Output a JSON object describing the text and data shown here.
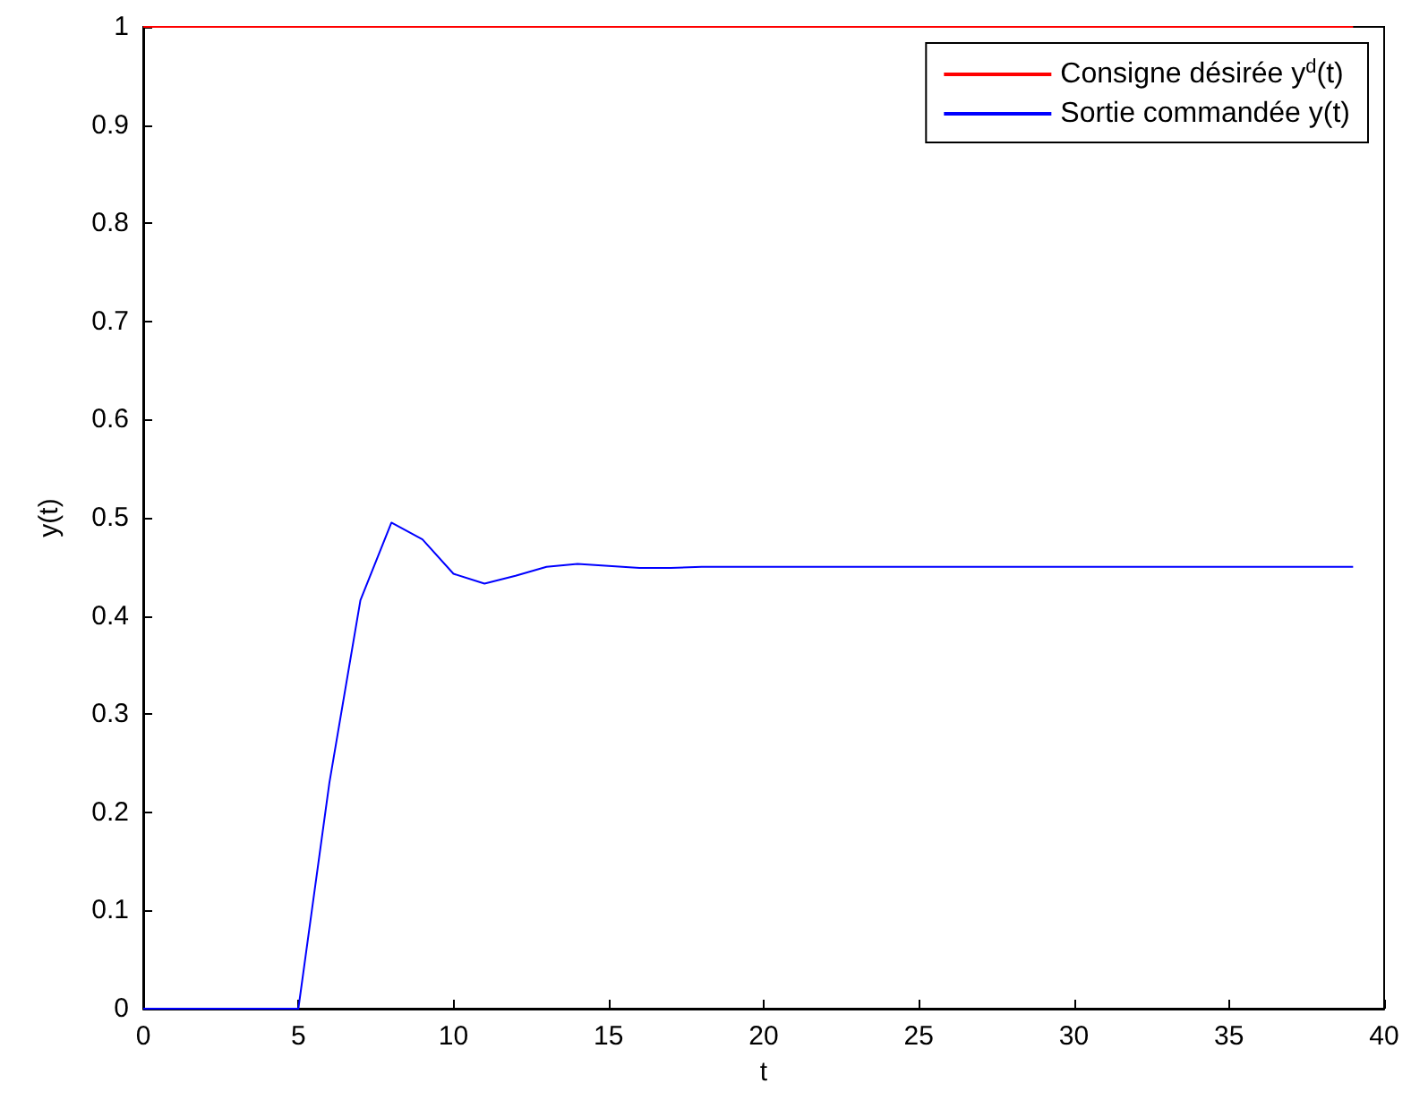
{
  "chart_data": {
    "type": "line",
    "xlabel": "t",
    "ylabel": "y(t)",
    "xlim": [
      0,
      40
    ],
    "xticks": [
      0,
      5,
      10,
      15,
      20,
      25,
      30,
      35,
      40
    ],
    "ylim": [
      0,
      1
    ],
    "yticks": [
      0,
      0.1,
      0.2,
      0.3,
      0.4,
      0.5,
      0.6,
      0.7,
      0.8,
      0.9,
      1
    ],
    "grid": false,
    "legend": "top right",
    "marker": "none",
    "line_style": "solid",
    "series": [
      {
        "name": "Consigne désirée y$^{d}$(t)",
        "color": "#ff0000",
        "x": [
          0,
          39
        ],
        "values": [
          1,
          1
        ]
      },
      {
        "name": "Sortie commandée y(t)",
        "color": "#0000ff",
        "x": [
          0,
          5,
          6,
          7,
          8,
          9,
          10,
          11,
          12,
          13,
          14,
          15,
          16,
          17,
          18,
          20,
          25,
          30,
          35,
          39
        ],
        "values": [
          0,
          0,
          0.23,
          0.416,
          0.495,
          0.478,
          0.443,
          0.433,
          0.441,
          0.45,
          0.453,
          0.451,
          0.449,
          0.449,
          0.45,
          0.45,
          0.45,
          0.45,
          0.45,
          0.45
        ]
      }
    ]
  }
}
